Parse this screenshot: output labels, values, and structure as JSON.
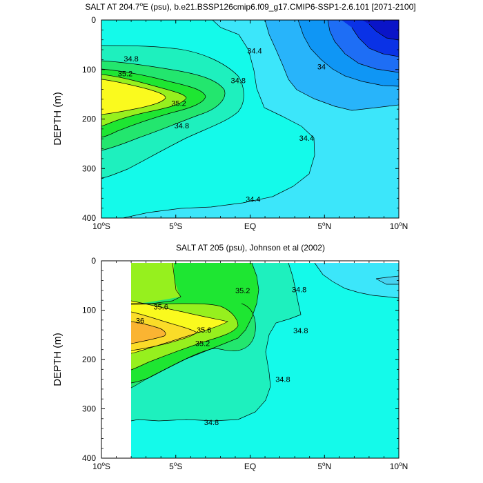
{
  "chart_data": [
    {
      "type": "contour",
      "title_parts": {
        "prefix": "SALT AT 204.7",
        "sup": "o",
        "suffix": "E (psu), b.e21.BSSP126cmip6.f09_g17.CMIP6-SSP1-2.6.101 [2071-2100]"
      },
      "ylabel": "DEPTH (m)",
      "xlim": [
        -10,
        10
      ],
      "ylim": [
        0,
        400
      ],
      "y_reversed": true,
      "x_ticks": [
        {
          "value": -10,
          "num": "10",
          "sup": "o",
          "suf": "S"
        },
        {
          "value": -5,
          "num": "5",
          "sup": "o",
          "suf": "S"
        },
        {
          "value": 0,
          "num": "EQ",
          "sup": "",
          "suf": ""
        },
        {
          "value": 5,
          "num": "5",
          "sup": "o",
          "suf": "N"
        },
        {
          "value": 10,
          "num": "10",
          "sup": "o",
          "suf": "N"
        }
      ],
      "y_ticks": [
        {
          "value": 0,
          "label": "0"
        },
        {
          "value": 100,
          "label": "100"
        },
        {
          "value": 200,
          "label": "200"
        },
        {
          "value": 300,
          "label": "300"
        },
        {
          "value": 400,
          "label": "400"
        }
      ],
      "data_x_range": [
        -10,
        10
      ],
      "levels": [
        {
          "value": 33.6,
          "color": "#0a32e6"
        },
        {
          "value": 33.8,
          "color": "#1e6ef5"
        },
        {
          "value": 34.0,
          "color": "#0f96f5"
        },
        {
          "value": 34.2,
          "color": "#28b4fa"
        },
        {
          "value": 34.4,
          "color": "#3ce6fa"
        },
        {
          "value": 34.6,
          "color": "#14faea"
        },
        {
          "value": 34.8,
          "color": "#1ef0be"
        },
        {
          "value": 35.0,
          "color": "#23e66e"
        },
        {
          "value": 35.2,
          "color": "#1ee632"
        },
        {
          "value": 35.4,
          "color": "#96f01e"
        }
      ],
      "base_color": "#3ce6fa",
      "max_color": "#fafa1e",
      "contour_labels": [
        {
          "text": "34.8",
          "x": -8.0,
          "y": 78
        },
        {
          "text": "35.2",
          "x": -8.4,
          "y": 108
        },
        {
          "text": "34.4",
          "x": 0.3,
          "y": 62
        },
        {
          "text": "34.8",
          "x": -0.8,
          "y": 122
        },
        {
          "text": "35.2",
          "x": -4.8,
          "y": 168
        },
        {
          "text": "34.8",
          "x": -4.6,
          "y": 213
        },
        {
          "text": "34",
          "x": 4.8,
          "y": 94
        },
        {
          "text": "34.4",
          "x": 3.8,
          "y": 238
        },
        {
          "text": "34.4",
          "x": 0.2,
          "y": 362
        }
      ]
    },
    {
      "type": "contour",
      "title_parts": {
        "prefix": "SALT AT 205 (psu), Johnson et al (2002)",
        "sup": "",
        "suffix": ""
      },
      "ylabel": "DEPTH (m)",
      "xlim": [
        -10,
        10
      ],
      "ylim": [
        0,
        400
      ],
      "y_reversed": true,
      "x_ticks": [
        {
          "value": -10,
          "num": "10",
          "sup": "o",
          "suf": "S"
        },
        {
          "value": -5,
          "num": "5",
          "sup": "o",
          "suf": "S"
        },
        {
          "value": 0,
          "num": "EQ",
          "sup": "",
          "suf": ""
        },
        {
          "value": 5,
          "num": "5",
          "sup": "o",
          "suf": "N"
        },
        {
          "value": 10,
          "num": "10",
          "sup": "o",
          "suf": "N"
        }
      ],
      "y_ticks": [
        {
          "value": 0,
          "label": "0"
        },
        {
          "value": 100,
          "label": "100"
        },
        {
          "value": 200,
          "label": "200"
        },
        {
          "value": 300,
          "label": "300"
        },
        {
          "value": 400,
          "label": "400"
        }
      ],
      "data_x_range": [
        -8,
        10
      ],
      "levels": [
        {
          "value": 34.6,
          "color": "#3ce6fa"
        },
        {
          "value": 34.8,
          "color": "#14faea"
        },
        {
          "value": 35.0,
          "color": "#1ef0be"
        },
        {
          "value": 35.2,
          "color": "#23e66e"
        },
        {
          "value": 35.4,
          "color": "#1ee632"
        },
        {
          "value": 35.6,
          "color": "#96f01e"
        },
        {
          "value": 35.8,
          "color": "#fafa1e"
        },
        {
          "value": 36.0,
          "color": "#fadc28"
        }
      ],
      "base_color": "#3ce6fa",
      "max_color": "#fab432",
      "contour_labels": [
        {
          "text": "35.6",
          "x": -6.0,
          "y": 93
        },
        {
          "text": "36",
          "x": -7.4,
          "y": 121
        },
        {
          "text": "35.2",
          "x": -0.5,
          "y": 60
        },
        {
          "text": "34.8",
          "x": 3.3,
          "y": 58
        },
        {
          "text": "35.6",
          "x": -3.1,
          "y": 140
        },
        {
          "text": "35.2",
          "x": -3.2,
          "y": 167
        },
        {
          "text": "34.8",
          "x": 3.4,
          "y": 141
        },
        {
          "text": "34.8",
          "x": 2.2,
          "y": 240
        },
        {
          "text": "34.8",
          "x": -2.6,
          "y": 327
        }
      ]
    }
  ]
}
